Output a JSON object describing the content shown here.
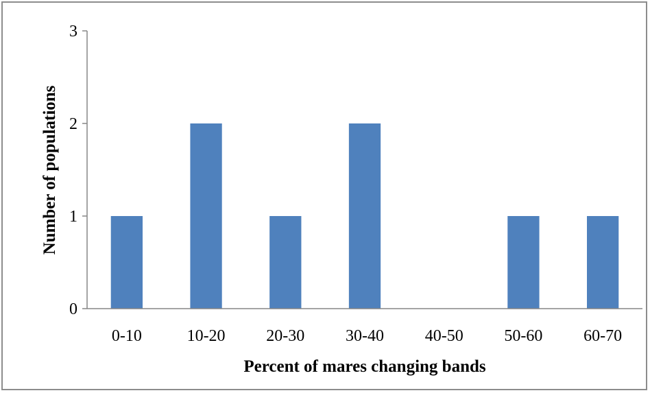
{
  "chart_data": {
    "type": "bar",
    "categories": [
      "0-10",
      "10-20",
      "20-30",
      "30-40",
      "40-50",
      "50-60",
      "60-70"
    ],
    "values": [
      1,
      2,
      1,
      2,
      0,
      1,
      1
    ],
    "title": "",
    "xlabel": "Percent of mares changing bands",
    "ylabel": "Number of populations",
    "ylim": [
      0,
      3
    ],
    "yticks": [
      0,
      1,
      2,
      3
    ],
    "bar_color": "#4f81bd",
    "axis_color": "#868686",
    "grid": false,
    "legend": "none"
  }
}
